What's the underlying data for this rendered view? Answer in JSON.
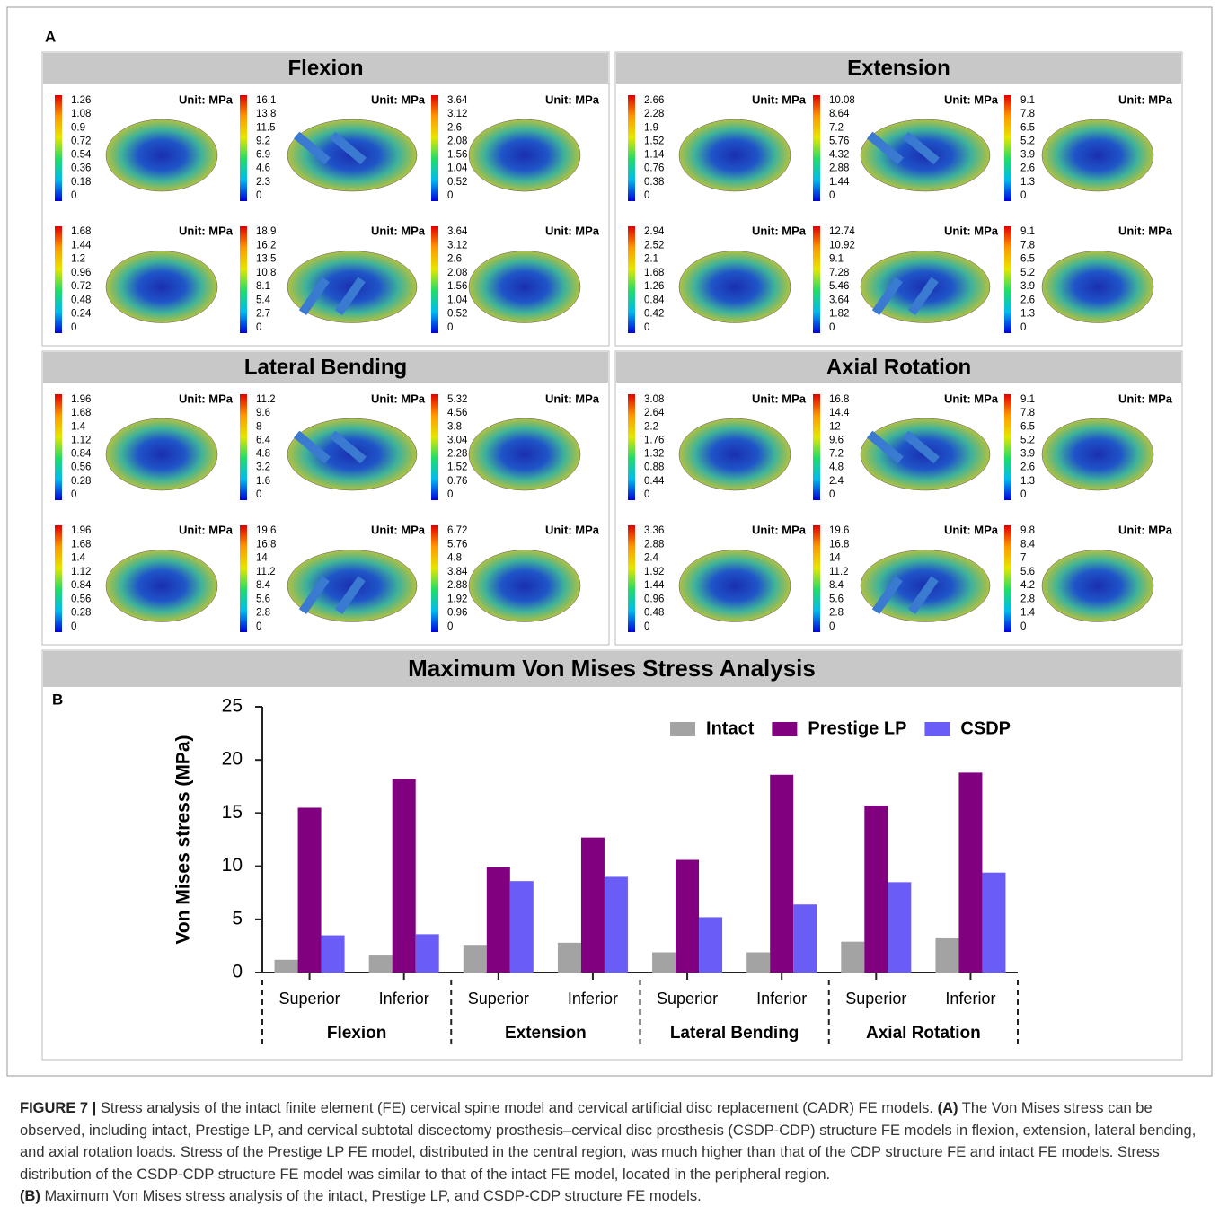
{
  "panel_a": {
    "label": "A",
    "panels": [
      {
        "title": "Flexion",
        "plots": [
          {
            "unit": "Unit: MPa",
            "ticks": [
              1.26,
              1.08,
              0.9,
              0.72,
              0.54,
              0.36,
              0.18,
              0
            ]
          },
          {
            "unit": "Unit: MPa",
            "ticks": [
              16.1,
              13.8,
              11.5,
              9.2,
              6.9,
              4.6,
              2.3,
              0
            ]
          },
          {
            "unit": "Unit: MPa",
            "ticks": [
              3.64,
              3.12,
              2.6,
              2.08,
              1.56,
              1.04,
              0.52,
              0
            ]
          },
          {
            "unit": "Unit: MPa",
            "ticks": [
              1.68,
              1.44,
              1.2,
              0.96,
              0.72,
              0.48,
              0.24,
              0
            ]
          },
          {
            "unit": "Unit: MPa",
            "ticks": [
              18.9,
              16.2,
              13.5,
              10.8,
              8.1,
              5.4,
              2.7,
              0
            ]
          },
          {
            "unit": "Unit: MPa",
            "ticks": [
              3.64,
              3.12,
              2.6,
              2.08,
              1.56,
              1.04,
              0.52,
              0
            ]
          }
        ]
      },
      {
        "title": "Extension",
        "plots": [
          {
            "unit": "Unit: MPa",
            "ticks": [
              2.66,
              2.28,
              1.9,
              1.52,
              1.14,
              0.76,
              0.38,
              0
            ]
          },
          {
            "unit": "Unit: MPa",
            "ticks": [
              10.08,
              8.64,
              7.2,
              5.76,
              4.32,
              2.88,
              1.44,
              0
            ]
          },
          {
            "unit": "Unit: MPa",
            "ticks": [
              9.1,
              7.8,
              6.5,
              5.2,
              3.9,
              2.6,
              1.3,
              0
            ]
          },
          {
            "unit": "Unit: MPa",
            "ticks": [
              2.94,
              2.52,
              2.1,
              1.68,
              1.26,
              0.84,
              0.42,
              0
            ]
          },
          {
            "unit": "Unit: MPa",
            "ticks": [
              12.74,
              10.92,
              9.1,
              7.28,
              5.46,
              3.64,
              1.82,
              0
            ]
          },
          {
            "unit": "Unit: MPa",
            "ticks": [
              9.1,
              7.8,
              6.5,
              5.2,
              3.9,
              2.6,
              1.3,
              0
            ]
          }
        ]
      },
      {
        "title": "Lateral Bending",
        "plots": [
          {
            "unit": "Unit: MPa",
            "ticks": [
              1.96,
              1.68,
              1.4,
              1.12,
              0.84,
              0.56,
              0.28,
              0
            ]
          },
          {
            "unit": "Unit: MPa",
            "ticks": [
              11.2,
              9.6,
              8,
              6.4,
              4.8,
              3.2,
              1.6,
              0
            ]
          },
          {
            "unit": "Unit: MPa",
            "ticks": [
              5.32,
              4.56,
              3.8,
              3.04,
              2.28,
              1.52,
              0.76,
              0
            ]
          },
          {
            "unit": "Unit: MPa",
            "ticks": [
              1.96,
              1.68,
              1.4,
              1.12,
              0.84,
              0.56,
              0.28,
              0
            ]
          },
          {
            "unit": "Unit: MPa",
            "ticks": [
              19.6,
              16.8,
              14,
              11.2,
              8.4,
              5.6,
              2.8,
              0
            ]
          },
          {
            "unit": "Unit: MPa",
            "ticks": [
              6.72,
              5.76,
              4.8,
              3.84,
              2.88,
              1.92,
              0.96,
              0
            ]
          }
        ]
      },
      {
        "title": "Axial Rotation",
        "plots": [
          {
            "unit": "Unit: MPa",
            "ticks": [
              3.08,
              2.64,
              2.2,
              1.76,
              1.32,
              0.88,
              0.44,
              0
            ]
          },
          {
            "unit": "Unit: MPa",
            "ticks": [
              16.8,
              14.4,
              12,
              9.6,
              7.2,
              4.8,
              2.4,
              0
            ]
          },
          {
            "unit": "Unit: MPa",
            "ticks": [
              9.1,
              7.8,
              6.5,
              5.2,
              3.9,
              2.6,
              1.3,
              0
            ]
          },
          {
            "unit": "Unit: MPa",
            "ticks": [
              3.36,
              2.88,
              2.4,
              1.92,
              1.44,
              0.96,
              0.48,
              0
            ]
          },
          {
            "unit": "Unit: MPa",
            "ticks": [
              19.6,
              16.8,
              14,
              11.2,
              8.4,
              5.6,
              2.8,
              0
            ]
          },
          {
            "unit": "Unit: MPa",
            "ticks": [
              9.8,
              8.4,
              7,
              5.6,
              4.2,
              2.8,
              1.4,
              0
            ]
          }
        ]
      }
    ]
  },
  "chart_data": {
    "type": "bar",
    "title": "Maximum Von Mises Stress Analysis",
    "panel_label": "B",
    "y_label": "Von Mises stress (MPa)",
    "categories": [
      "Superior",
      "Inferior",
      "Superior",
      "Inferior",
      "Superior",
      "Inferior",
      "Superior",
      "Inferior"
    ],
    "groups": [
      "Flexion",
      "Extension",
      "Lateral Bending",
      "Axial Rotation"
    ],
    "series": [
      {
        "name": "Intact",
        "color": "#a3a3a3",
        "values": [
          1.2,
          1.6,
          2.6,
          2.8,
          1.9,
          1.9,
          2.9,
          3.3
        ]
      },
      {
        "name": "Prestige LP",
        "color": "#800080",
        "values": [
          15.5,
          18.2,
          9.9,
          12.7,
          10.6,
          18.6,
          15.7,
          18.8
        ]
      },
      {
        "name": "CSDP",
        "color": "#6a5cf6",
        "values": [
          3.5,
          3.6,
          8.6,
          9.0,
          5.2,
          6.4,
          8.5,
          9.4
        ]
      }
    ],
    "ylim": [
      0,
      25
    ],
    "yticks": [
      0,
      5,
      10,
      15,
      20,
      25
    ],
    "legend": "upper right"
  },
  "caption": {
    "label": "FIGURE 7 |",
    "text": "Stress analysis of the intact finite element (FE) cervical spine model and cervical artificial disc replacement (CADR) FE models.",
    "a_label": "(A)",
    "a_text": "The Von Mises stress can be observed, including intact, Prestige LP, and cervical subtotal discectomy prosthesis–cervical disc prosthesis (CSDP-CDP) structure FE models in flexion, extension, lateral bending, and axial rotation loads. Stress of the Prestige LP FE model, distributed in the central region, was much higher than that of the CDP structure FE and intact FE models. Stress distribution of the CSDP-CDP structure FE model was similar to that of the intact FE model, located in the peripheral region.",
    "b_label": "(B)",
    "b_text": "Maximum Von Mises stress analysis of the intact, Prestige LP, and CSDP-CDP structure FE models."
  }
}
